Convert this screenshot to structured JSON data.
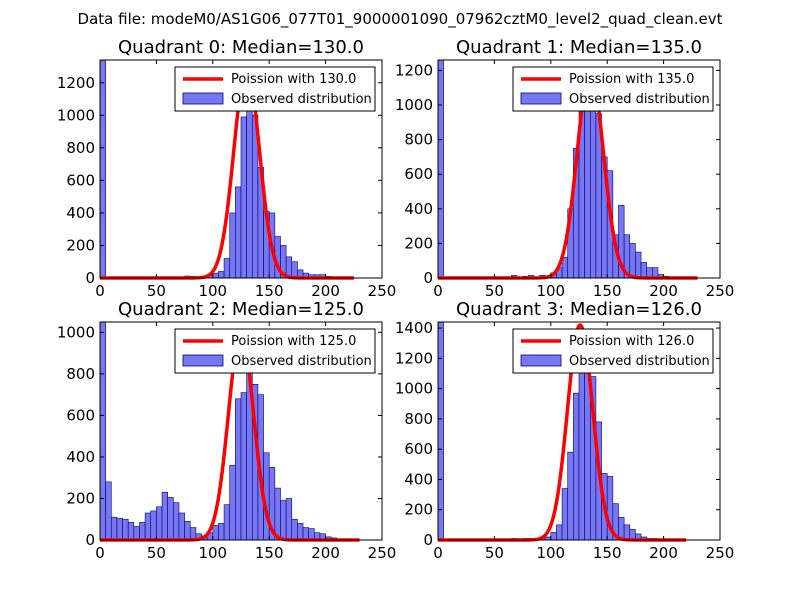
{
  "figure_title": "Data file: modeM0/AS1G06_077T01_9000001090_07962cztM0_level2_quad_clean.evt",
  "colors": {
    "poisson": "#ff0000",
    "hist_fill": "#7777f0",
    "hist_edge": "#000080",
    "axes": "#000000"
  },
  "chart_data": [
    {
      "type": "bar",
      "title": "Quadrant 0: Median=130.0",
      "xlim": [
        0,
        250
      ],
      "ylim": [
        0,
        1340
      ],
      "xticks": [
        0,
        50,
        100,
        150,
        200,
        250
      ],
      "yticks": [
        0,
        200,
        400,
        600,
        800,
        1000,
        1200
      ],
      "legend": [
        "Poission with 130.0",
        "Observed distribution"
      ],
      "legend_position": "top-right",
      "bin_width": 5,
      "bins": [
        [
          0,
          1340
        ],
        [
          5,
          2
        ],
        [
          10,
          2
        ],
        [
          15,
          2
        ],
        [
          20,
          2
        ],
        [
          25,
          2
        ],
        [
          30,
          2
        ],
        [
          35,
          2
        ],
        [
          40,
          2
        ],
        [
          45,
          2
        ],
        [
          50,
          2
        ],
        [
          55,
          2
        ],
        [
          60,
          2
        ],
        [
          65,
          2
        ],
        [
          70,
          2
        ],
        [
          75,
          12
        ],
        [
          80,
          10
        ],
        [
          85,
          2
        ],
        [
          90,
          10
        ],
        [
          95,
          15
        ],
        [
          100,
          30
        ],
        [
          105,
          40
        ],
        [
          110,
          120
        ],
        [
          115,
          400
        ],
        [
          120,
          560
        ],
        [
          125,
          990
        ],
        [
          130,
          1250
        ],
        [
          135,
          1000
        ],
        [
          140,
          680
        ],
        [
          145,
          410
        ],
        [
          150,
          400
        ],
        [
          155,
          255
        ],
        [
          160,
          200
        ],
        [
          165,
          130
        ],
        [
          170,
          100
        ],
        [
          175,
          50
        ],
        [
          180,
          30
        ],
        [
          185,
          20
        ],
        [
          190,
          20
        ],
        [
          195,
          20
        ],
        [
          200,
          10
        ],
        [
          205,
          2
        ],
        [
          210,
          2
        ],
        [
          215,
          2
        ],
        [
          220,
          2
        ]
      ],
      "poisson_mean": 130.0,
      "poisson_peak": 1290,
      "curve_x_range": [
        0,
        225
      ]
    },
    {
      "type": "bar",
      "title": "Quadrant 1: Median=135.0",
      "xlim": [
        0,
        250
      ],
      "ylim": [
        0,
        1260
      ],
      "xticks": [
        0,
        50,
        100,
        150,
        200,
        250
      ],
      "yticks": [
        0,
        200,
        400,
        600,
        800,
        1000,
        1200
      ],
      "legend": [
        "Poission with 135.0",
        "Observed distribution"
      ],
      "legend_position": "top-right",
      "bin_width": 5,
      "bins": [
        [
          0,
          1260
        ],
        [
          5,
          2
        ],
        [
          10,
          2
        ],
        [
          15,
          2
        ],
        [
          20,
          2
        ],
        [
          25,
          2
        ],
        [
          30,
          2
        ],
        [
          35,
          2
        ],
        [
          40,
          2
        ],
        [
          45,
          2
        ],
        [
          50,
          2
        ],
        [
          55,
          2
        ],
        [
          60,
          2
        ],
        [
          65,
          15
        ],
        [
          70,
          2
        ],
        [
          75,
          10
        ],
        [
          80,
          15
        ],
        [
          85,
          2
        ],
        [
          90,
          15
        ],
        [
          95,
          2
        ],
        [
          100,
          30
        ],
        [
          105,
          60
        ],
        [
          110,
          120
        ],
        [
          115,
          400
        ],
        [
          120,
          750
        ],
        [
          125,
          1090
        ],
        [
          130,
          1200
        ],
        [
          135,
          1120
        ],
        [
          140,
          950
        ],
        [
          145,
          700
        ],
        [
          150,
          620
        ],
        [
          155,
          250
        ],
        [
          160,
          420
        ],
        [
          165,
          250
        ],
        [
          170,
          200
        ],
        [
          175,
          150
        ],
        [
          180,
          90
        ],
        [
          185,
          60
        ],
        [
          190,
          60
        ],
        [
          195,
          20
        ],
        [
          200,
          10
        ],
        [
          205,
          2
        ],
        [
          210,
          2
        ],
        [
          215,
          2
        ],
        [
          220,
          2
        ]
      ],
      "poisson_mean": 135.0,
      "poisson_peak": 1200,
      "curve_x_range": [
        0,
        230
      ]
    },
    {
      "type": "bar",
      "title": "Quadrant 2: Median=125.0",
      "xlim": [
        0,
        250
      ],
      "ylim": [
        0,
        1050
      ],
      "xticks": [
        0,
        50,
        100,
        150,
        200,
        250
      ],
      "yticks": [
        0,
        200,
        400,
        600,
        800,
        1000
      ],
      "legend": [
        "Poission with 125.0",
        "Observed distribution"
      ],
      "legend_position": "top-right",
      "bin_width": 5,
      "bins": [
        [
          0,
          1050
        ],
        [
          5,
          280
        ],
        [
          10,
          110
        ],
        [
          15,
          105
        ],
        [
          20,
          100
        ],
        [
          25,
          85
        ],
        [
          30,
          65
        ],
        [
          35,
          85
        ],
        [
          40,
          130
        ],
        [
          45,
          140
        ],
        [
          50,
          160
        ],
        [
          55,
          230
        ],
        [
          60,
          205
        ],
        [
          65,
          180
        ],
        [
          70,
          130
        ],
        [
          75,
          90
        ],
        [
          80,
          60
        ],
        [
          85,
          30
        ],
        [
          90,
          20
        ],
        [
          95,
          35
        ],
        [
          100,
          70
        ],
        [
          105,
          80
        ],
        [
          110,
          170
        ],
        [
          115,
          360
        ],
        [
          120,
          680
        ],
        [
          125,
          710
        ],
        [
          130,
          950
        ],
        [
          135,
          750
        ],
        [
          140,
          700
        ],
        [
          145,
          420
        ],
        [
          150,
          350
        ],
        [
          155,
          250
        ],
        [
          160,
          190
        ],
        [
          165,
          200
        ],
        [
          170,
          100
        ],
        [
          175,
          80
        ],
        [
          180,
          60
        ],
        [
          185,
          55
        ],
        [
          190,
          35
        ],
        [
          195,
          30
        ],
        [
          200,
          15
        ],
        [
          205,
          10
        ],
        [
          210,
          5
        ],
        [
          215,
          5
        ],
        [
          220,
          2
        ],
        [
          225,
          2
        ]
      ],
      "poisson_mean": 125.0,
      "poisson_peak": 1000,
      "curve_x_range": [
        0,
        230
      ]
    },
    {
      "type": "bar",
      "title": "Quadrant 3: Median=126.0",
      "xlim": [
        0,
        250
      ],
      "ylim": [
        0,
        1440
      ],
      "xticks": [
        0,
        50,
        100,
        150,
        200,
        250
      ],
      "yticks": [
        0,
        200,
        400,
        600,
        800,
        1000,
        1200,
        1400
      ],
      "legend": [
        "Poission with 126.0",
        "Observed distribution"
      ],
      "legend_position": "top-right",
      "bin_width": 5,
      "bins": [
        [
          0,
          1440
        ],
        [
          5,
          2
        ],
        [
          10,
          2
        ],
        [
          15,
          2
        ],
        [
          20,
          2
        ],
        [
          25,
          2
        ],
        [
          30,
          2
        ],
        [
          35,
          2
        ],
        [
          40,
          2
        ],
        [
          45,
          2
        ],
        [
          50,
          2
        ],
        [
          55,
          2
        ],
        [
          60,
          2
        ],
        [
          65,
          10
        ],
        [
          70,
          2
        ],
        [
          75,
          10
        ],
        [
          80,
          10
        ],
        [
          85,
          2
        ],
        [
          90,
          10
        ],
        [
          95,
          20
        ],
        [
          100,
          50
        ],
        [
          105,
          100
        ],
        [
          110,
          340
        ],
        [
          115,
          580
        ],
        [
          120,
          970
        ],
        [
          125,
          1380
        ],
        [
          130,
          1180
        ],
        [
          135,
          1080
        ],
        [
          140,
          780
        ],
        [
          145,
          440
        ],
        [
          150,
          420
        ],
        [
          155,
          240
        ],
        [
          160,
          150
        ],
        [
          165,
          100
        ],
        [
          170,
          70
        ],
        [
          175,
          40
        ],
        [
          180,
          20
        ],
        [
          185,
          10
        ],
        [
          190,
          10
        ],
        [
          195,
          5
        ],
        [
          200,
          5
        ],
        [
          205,
          2
        ],
        [
          210,
          2
        ],
        [
          215,
          2
        ]
      ],
      "poisson_mean": 126.0,
      "poisson_peak": 1420,
      "curve_x_range": [
        0,
        220
      ]
    }
  ]
}
